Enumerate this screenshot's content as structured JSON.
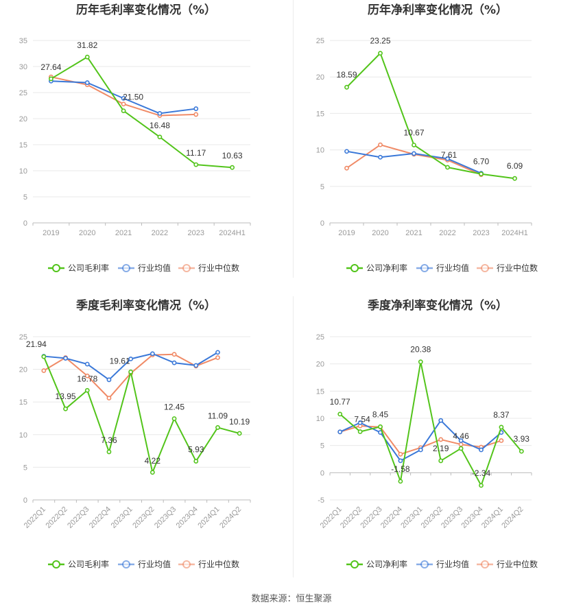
{
  "source_label": "数据来源：恒生聚源",
  "colors": {
    "company": "#52c41a",
    "avg": "#3a78d8",
    "median": "#f08a66",
    "grid": "#e8e8e8",
    "axis": "#999999"
  },
  "chart_data": [
    {
      "type": "line",
      "title": "历年毛利率变化情况（%）",
      "categories": [
        "2019",
        "2020",
        "2021",
        "2022",
        "2023",
        "2024H1"
      ],
      "ylim": [
        0,
        35
      ],
      "yticks": [
        0,
        5,
        10,
        15,
        20,
        25,
        30,
        35
      ],
      "grid": true,
      "legend": "bottom",
      "series": [
        {
          "name": "公司毛利率",
          "key": "company",
          "values": [
            27.64,
            31.82,
            21.5,
            16.48,
            11.17,
            10.63
          ],
          "labels": [
            "27.64",
            "31.82",
            "21.50",
            "16.48",
            "11.17",
            "10.63"
          ]
        },
        {
          "name": "行业均值",
          "key": "avg",
          "values": [
            27.2,
            26.9,
            23.9,
            21.0,
            21.9,
            null
          ]
        },
        {
          "name": "行业中位数",
          "key": "median",
          "values": [
            28.0,
            26.5,
            22.8,
            20.6,
            20.8,
            null
          ]
        }
      ]
    },
    {
      "type": "line",
      "title": "历年净利率变化情况（%）",
      "categories": [
        "2019",
        "2020",
        "2021",
        "2022",
        "2023",
        "2024H1"
      ],
      "ylim": [
        0,
        25
      ],
      "yticks": [
        0,
        5,
        10,
        15,
        20,
        25
      ],
      "grid": true,
      "legend": "bottom",
      "series": [
        {
          "name": "公司净利率",
          "key": "company",
          "values": [
            18.59,
            23.25,
            10.67,
            7.61,
            6.7,
            6.09
          ],
          "labels": [
            "18.59",
            "23.25",
            "10.67",
            "7.61",
            "6.70",
            "6.09"
          ]
        },
        {
          "name": "行业均值",
          "key": "avg",
          "values": [
            9.8,
            9.0,
            9.5,
            8.8,
            6.8,
            null
          ]
        },
        {
          "name": "行业中位数",
          "key": "median",
          "values": [
            7.5,
            10.7,
            9.4,
            8.6,
            6.6,
            null
          ]
        }
      ]
    },
    {
      "type": "line",
      "title": "季度毛利率变化情况（%）",
      "categories": [
        "2022Q1",
        "2022Q2",
        "2022Q3",
        "2022Q4",
        "2023Q1",
        "2023Q2",
        "2023Q3",
        "2023Q4",
        "2024Q1",
        "2024Q2"
      ],
      "ylim": [
        0,
        25
      ],
      "yticks": [
        0,
        5,
        10,
        15,
        20,
        25
      ],
      "grid": true,
      "legend": "bottom",
      "series": [
        {
          "name": "公司毛利率",
          "key": "company",
          "values": [
            21.94,
            13.95,
            16.78,
            7.36,
            19.61,
            4.22,
            12.45,
            5.93,
            11.09,
            10.19
          ],
          "labels": [
            "21.94",
            "13.95",
            "16.78",
            "7.36",
            "19.61",
            "4.22",
            "12.45",
            "5.93",
            "11.09",
            "10.19"
          ]
        },
        {
          "name": "行业均值",
          "key": "avg",
          "values": [
            22.0,
            21.7,
            20.8,
            18.4,
            21.6,
            22.4,
            21.0,
            20.6,
            22.6,
            null
          ]
        },
        {
          "name": "行业中位数",
          "key": "median",
          "values": [
            19.8,
            21.8,
            19.0,
            15.6,
            19.4,
            22.2,
            22.3,
            20.5,
            21.8,
            null
          ]
        }
      ]
    },
    {
      "type": "line",
      "title": "季度净利率变化情况（%）",
      "categories": [
        "2022Q1",
        "2022Q2",
        "2022Q3",
        "2022Q4",
        "2023Q1",
        "2023Q2",
        "2023Q3",
        "2023Q4",
        "2024Q1",
        "2024Q2"
      ],
      "ylim": [
        -5,
        25
      ],
      "yticks": [
        -5,
        0,
        5,
        10,
        15,
        20,
        25
      ],
      "grid": true,
      "legend": "bottom",
      "series": [
        {
          "name": "公司净利率",
          "key": "company",
          "values": [
            10.77,
            7.54,
            8.45,
            -1.58,
            20.38,
            2.19,
            4.46,
            -2.34,
            8.37,
            3.93
          ],
          "labels": [
            "10.77",
            "7.54",
            "8.45",
            "-1.58",
            "20.38",
            "2.19",
            "4.46",
            "-2.34",
            "8.37",
            "3.93"
          ]
        },
        {
          "name": "行业均值",
          "key": "avg",
          "values": [
            7.5,
            9.2,
            7.4,
            2.2,
            4.2,
            9.6,
            5.9,
            4.2,
            7.4,
            null
          ]
        },
        {
          "name": "行业中位数",
          "key": "median",
          "values": [
            7.5,
            8.6,
            8.4,
            3.4,
            4.6,
            6.1,
            5.2,
            4.7,
            5.9,
            null
          ]
        }
      ]
    }
  ]
}
